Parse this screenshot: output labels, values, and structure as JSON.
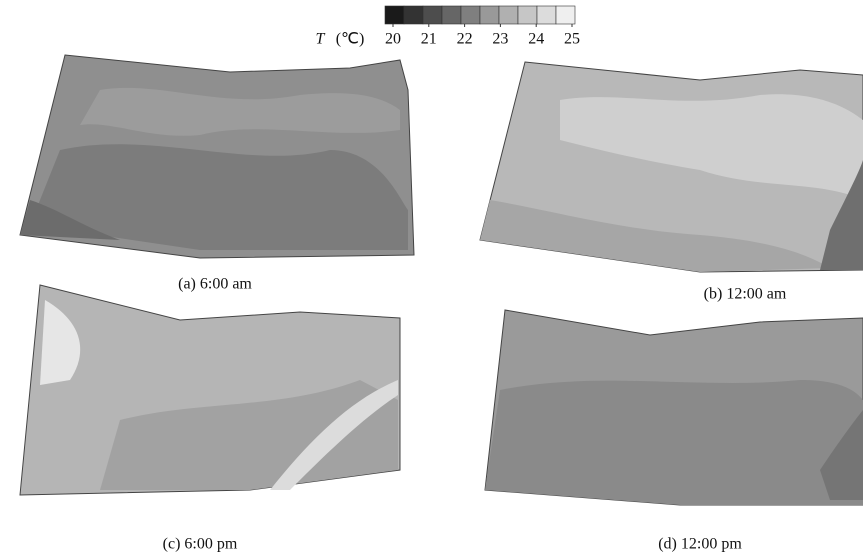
{
  "colorbar": {
    "variable": "T",
    "unit": "(℃)",
    "ticks": [
      20,
      21,
      22,
      23,
      24,
      25
    ],
    "colors": [
      "#1a1a1a",
      "#333333",
      "#4d4d4d",
      "#666666",
      "#7f7f7f",
      "#999999",
      "#b0b0b0",
      "#c6c6c6",
      "#dcdcdc",
      "#efefef"
    ]
  },
  "panels": [
    {
      "caption": "(a) 6:00 am"
    },
    {
      "caption": "(b) 12:00 am"
    },
    {
      "caption": "(c) 6:00 pm"
    },
    {
      "caption": "(d) 12:00 pm"
    }
  ]
}
